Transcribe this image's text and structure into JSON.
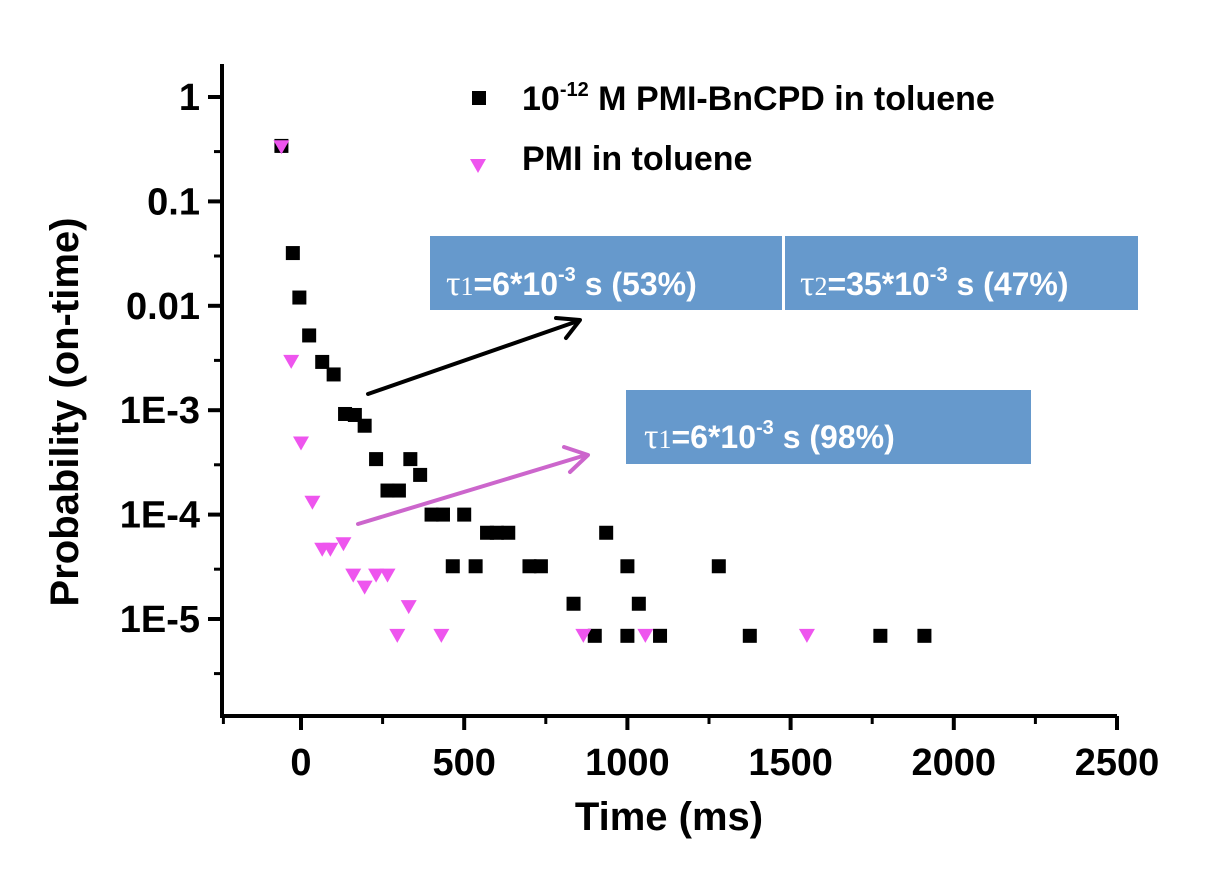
{
  "chart_data": {
    "type": "scatter",
    "xlabel": "Time (ms)",
    "ylabel": "Probability (on-time)",
    "xlim": [
      -230,
      2500
    ],
    "ylim": [
      1.1e-06,
      2.2
    ],
    "yscale": "log",
    "x_ticks": [
      0,
      500,
      1000,
      1500,
      2000,
      2500
    ],
    "x_tick_labels": [
      "0",
      "500",
      "1000",
      "1500",
      "2000",
      "2500"
    ],
    "y_ticks": [
      1,
      0.1,
      0.01,
      0.001,
      0.0001,
      1e-05
    ],
    "y_tick_labels": [
      "1",
      "0.1",
      "0.01",
      "1E-3",
      "1E-4",
      "1E-5"
    ],
    "grid": false,
    "legend_position": "top-right",
    "series": [
      {
        "name_prefix": "10",
        "name_superscript": "-12",
        "name_suffix": " M PMI-BnCPD in toluene",
        "marker": "square",
        "color": "#000000",
        "points": [
          [
            -60,
            0.34
          ],
          [
            -25,
            0.032
          ],
          [
            -5,
            0.012
          ],
          [
            25,
            0.0052
          ],
          [
            65,
            0.0029
          ],
          [
            100,
            0.0022
          ],
          [
            135,
            0.00092
          ],
          [
            165,
            0.0009
          ],
          [
            195,
            0.00071
          ],
          [
            230,
            0.00034
          ],
          [
            265,
            0.00017
          ],
          [
            300,
            0.00017
          ],
          [
            335,
            0.00034
          ],
          [
            365,
            0.00024
          ],
          [
            400,
            0.0001
          ],
          [
            435,
            0.0001
          ],
          [
            465,
            3.2e-05
          ],
          [
            500,
            0.0001
          ],
          [
            535,
            3.2e-05
          ],
          [
            570,
            6.7e-05
          ],
          [
            600,
            6.7e-05
          ],
          [
            635,
            6.7e-05
          ],
          [
            700,
            3.2e-05
          ],
          [
            735,
            3.2e-05
          ],
          [
            835,
            1.4e-05
          ],
          [
            900,
            6.9e-06
          ],
          [
            935,
            6.7e-05
          ],
          [
            1000,
            3.2e-05
          ],
          [
            1000,
            6.9e-06
          ],
          [
            1035,
            1.4e-05
          ],
          [
            1100,
            6.9e-06
          ],
          [
            1280,
            3.2e-05
          ],
          [
            1375,
            6.9e-06
          ],
          [
            1775,
            6.9e-06
          ],
          [
            1910,
            6.9e-06
          ]
        ]
      },
      {
        "name": "PMI in toluene",
        "marker": "triangle-down",
        "color": "#ee55ee",
        "points": [
          [
            -60,
            0.33
          ],
          [
            -30,
            0.0029
          ],
          [
            0,
            0.00048
          ],
          [
            35,
            0.00013
          ],
          [
            65,
            4.6e-05
          ],
          [
            90,
            4.6e-05
          ],
          [
            130,
            5.2e-05
          ],
          [
            160,
            2.6e-05
          ],
          [
            195,
            2e-05
          ],
          [
            230,
            2.6e-05
          ],
          [
            265,
            2.6e-05
          ],
          [
            295,
            6.9e-06
          ],
          [
            330,
            1.3e-05
          ],
          [
            430,
            6.9e-06
          ],
          [
            865,
            6.9e-06
          ],
          [
            1055,
            6.9e-06
          ],
          [
            1550,
            6.9e-06
          ]
        ]
      }
    ],
    "annotations": [
      {
        "tau": "τ",
        "tau_index": "1",
        "rest": "=6*10",
        "sup": "-3",
        "tail": " s (53%)"
      },
      {
        "tau": "τ",
        "tau_index": "2",
        "rest": "=35*10",
        "sup": "-3",
        "tail": " s (47%)"
      },
      {
        "tau": "τ",
        "tau_index": "1",
        "rest": "=6*10",
        "sup": "-3",
        "tail": " s (98%)"
      }
    ],
    "annotation_box_color": "#6699cc",
    "arrow_colors": [
      "#000000",
      "#cc66cc"
    ]
  }
}
